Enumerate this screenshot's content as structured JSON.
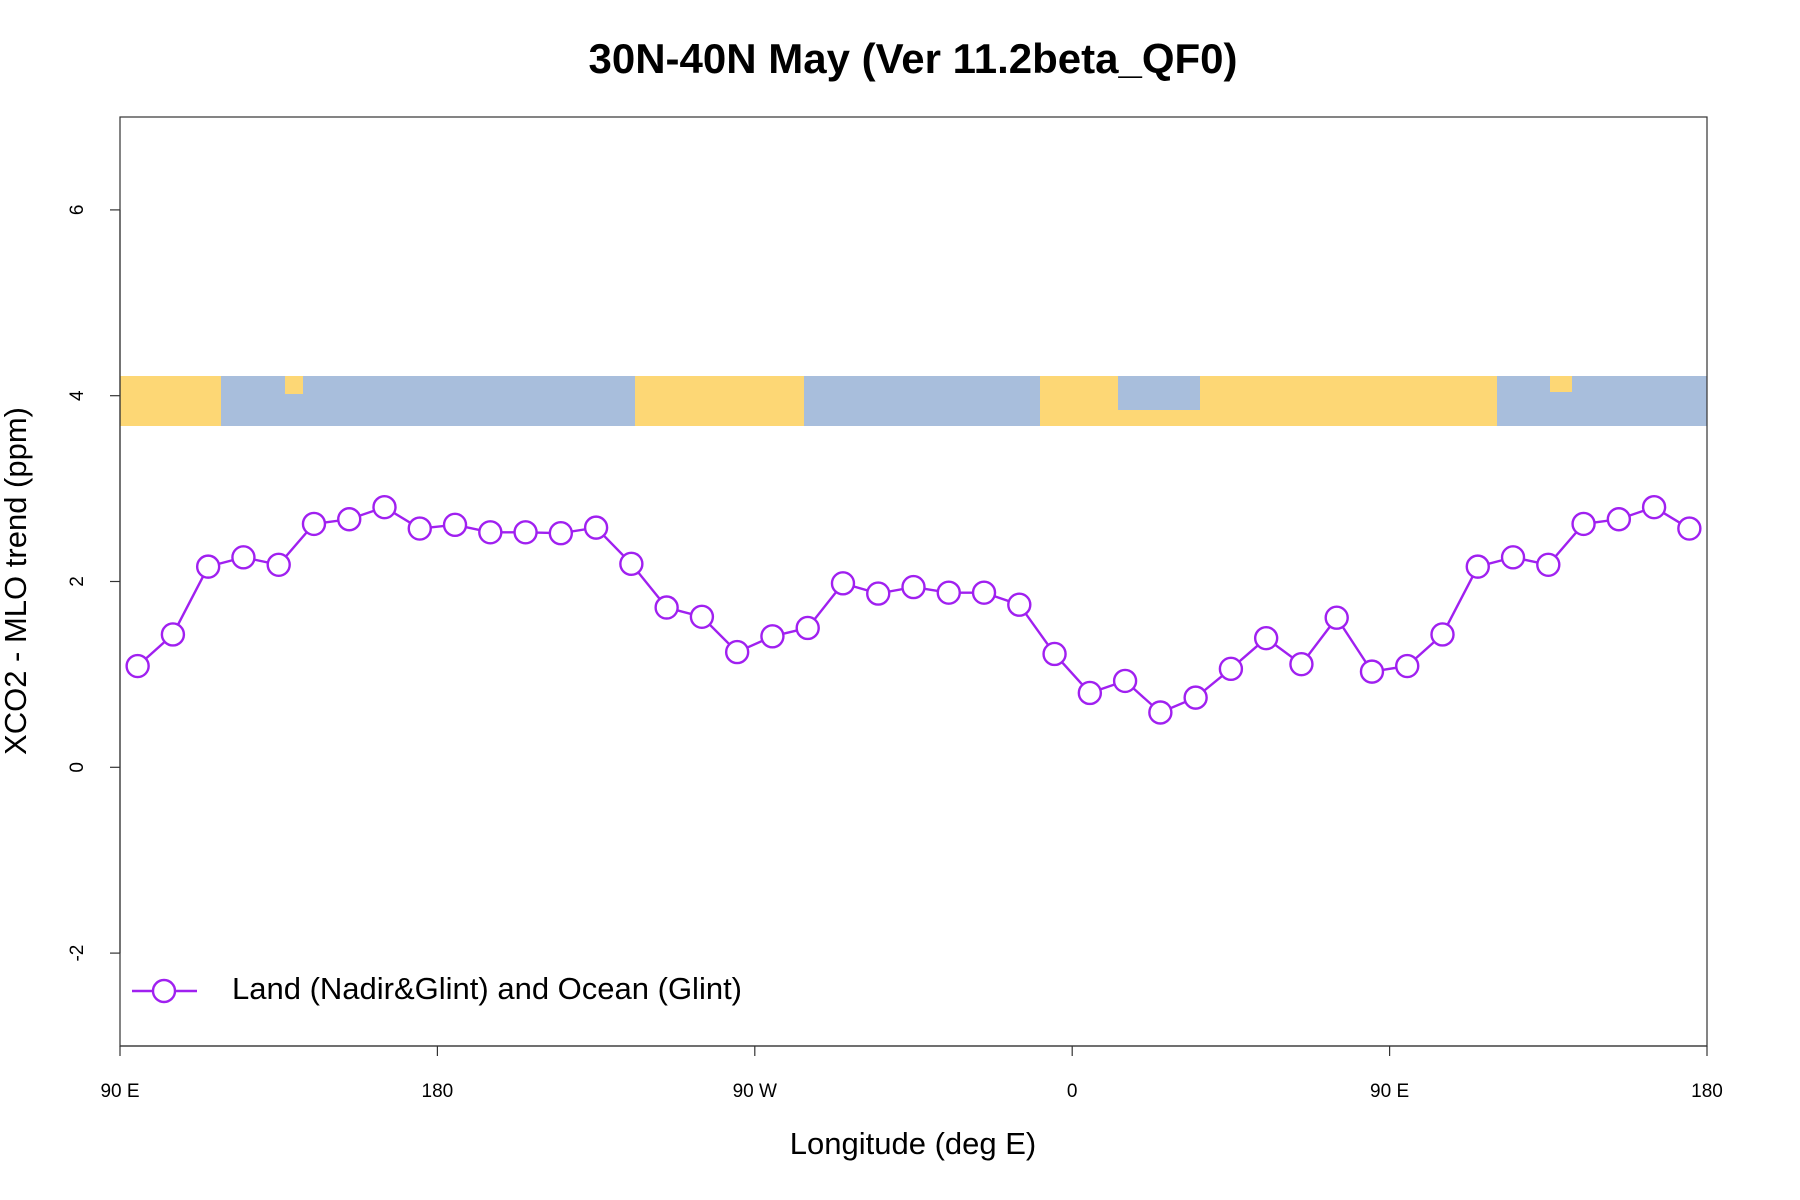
{
  "chart_data": {
    "type": "line",
    "title": "30N-40N May (Ver 11.2beta_QF0)",
    "x_label": "Longitude (deg E)",
    "y_label": "XCO2 - MLO trend (ppm)",
    "x": [
      95,
      105,
      115,
      125,
      135,
      145,
      155,
      165,
      175,
      185,
      195,
      205,
      215,
      225,
      235,
      245,
      255,
      265,
      275,
      285,
      295,
      305,
      315,
      325,
      335,
      345,
      355,
      365,
      375,
      385,
      395,
      405,
      415,
      425,
      435,
      445,
      455,
      465,
      475,
      485,
      495,
      505,
      515,
      525,
      535
    ],
    "series": [
      {
        "name": "Land (Nadir&Glint) and Ocean (Glint)",
        "color": "#a020f0",
        "values": [
          1.09,
          1.43,
          2.16,
          2.26,
          2.18,
          2.62,
          2.67,
          2.8,
          2.57,
          2.61,
          2.53,
          2.53,
          2.52,
          2.58,
          2.19,
          1.72,
          1.62,
          1.24,
          1.41,
          1.5,
          1.98,
          1.87,
          1.94,
          1.88,
          1.88,
          1.75,
          1.22,
          0.8,
          0.93,
          0.59,
          0.75,
          1.06,
          1.39,
          1.11,
          1.61,
          1.03,
          1.09,
          1.43,
          2.16,
          2.26,
          2.18,
          2.62,
          2.67,
          2.8,
          2.57
        ]
      }
    ],
    "xlim": [
      90,
      540
    ],
    "xticks": [
      {
        "value": 90,
        "label": "90 E"
      },
      180,
      {
        "value": 270,
        "label": "90 W"
      },
      {
        "value": 360,
        "label": "0"
      },
      {
        "value": 450,
        "label": "90 E"
      },
      {
        "value": 540,
        "label": "180"
      }
    ],
    "ylim": [
      -3,
      7
    ],
    "yticks": [
      -2,
      0,
      2,
      4,
      6
    ],
    "grid": false,
    "legend": "bottomleft",
    "marker": "open-circle"
  }
}
